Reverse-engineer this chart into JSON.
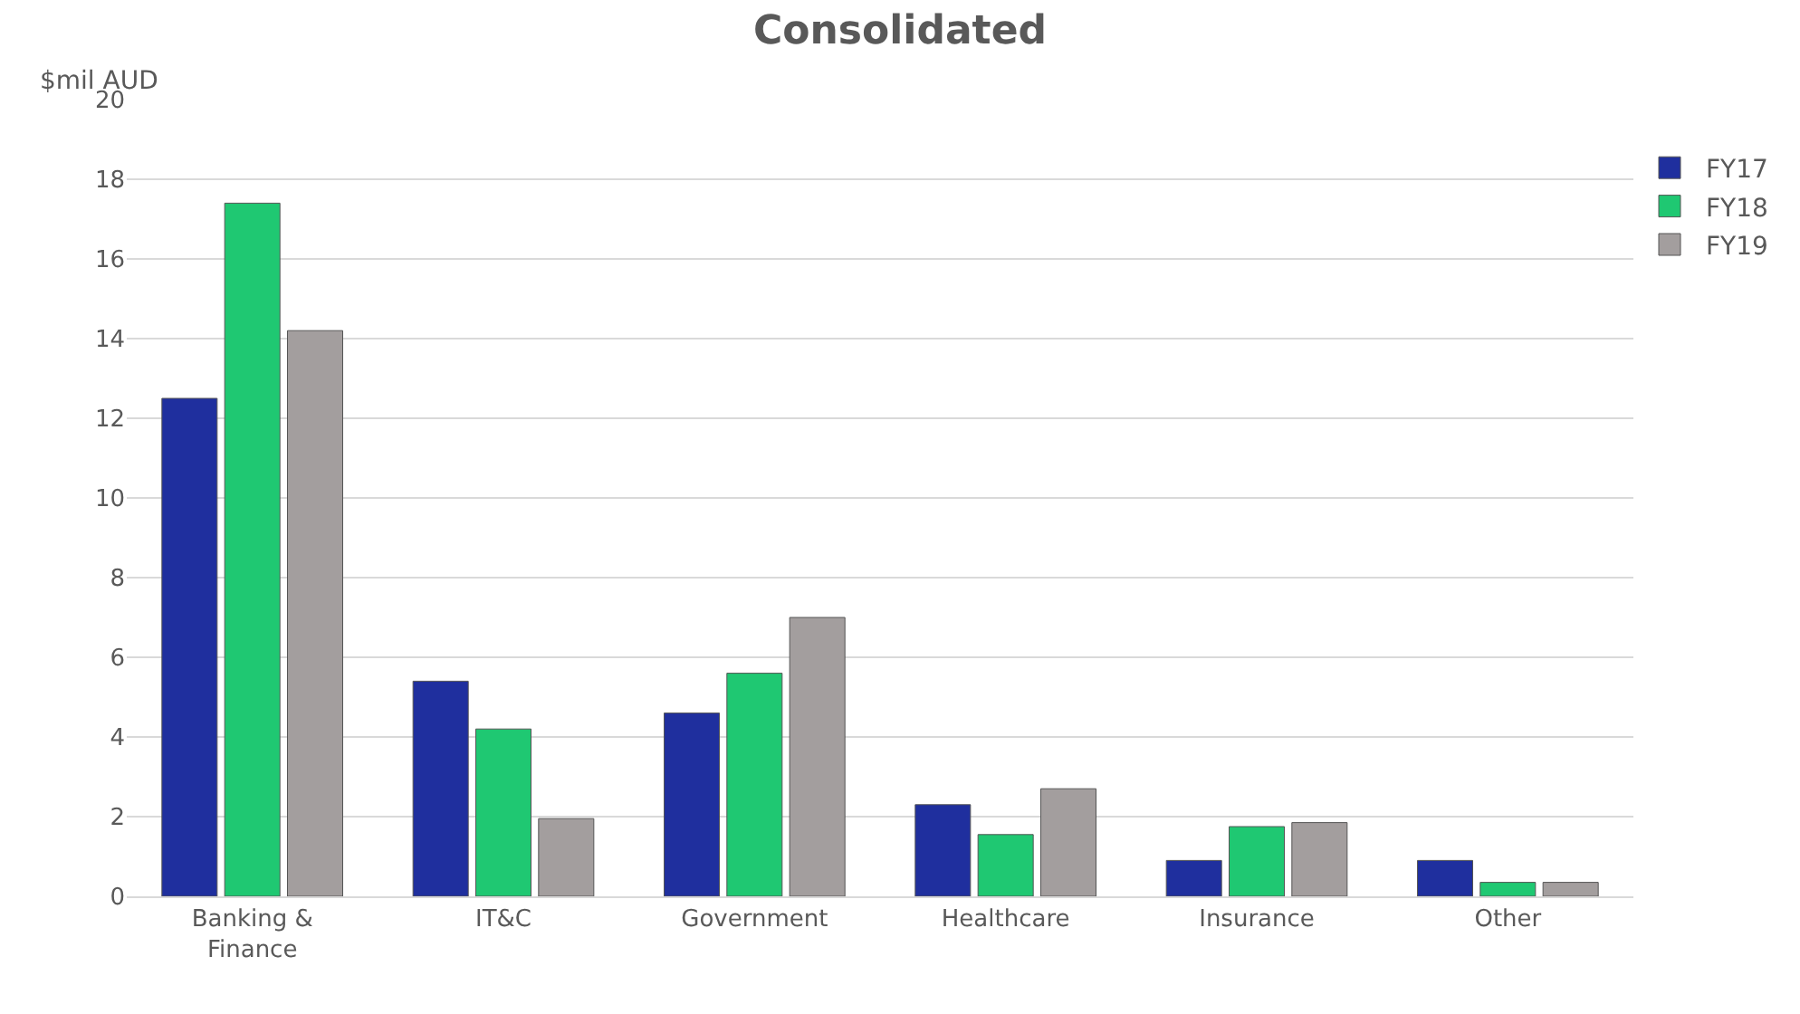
{
  "chart_data": {
    "type": "bar",
    "title": "Consolidated",
    "ylabel": "$mil AUD",
    "categories": [
      "Banking &\nFinance",
      "IT&C",
      "Government",
      "Healthcare",
      "Insurance",
      "Other"
    ],
    "series": [
      {
        "name": "FY17",
        "color": "#1f2f9e",
        "values": [
          12.5,
          5.4,
          4.6,
          2.3,
          0.9,
          0.9
        ]
      },
      {
        "name": "FY18",
        "color": "#1fc872",
        "values": [
          17.4,
          4.2,
          5.6,
          1.55,
          1.75,
          0.35
        ]
      },
      {
        "name": "FY19",
        "color": "#a39e9e",
        "values": [
          14.2,
          1.95,
          7.0,
          2.7,
          1.85,
          0.35
        ]
      }
    ],
    "ylim": [
      0,
      20
    ],
    "yticks": [
      0,
      2,
      4,
      6,
      8,
      10,
      12,
      14,
      16,
      18,
      20
    ],
    "grid": "y",
    "legend": "right"
  }
}
